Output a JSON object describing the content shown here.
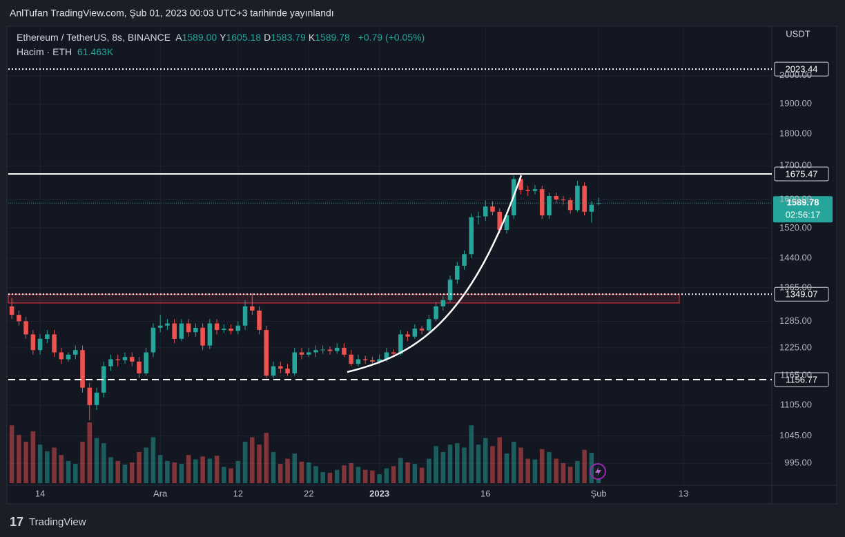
{
  "header": {
    "text": "AnlTufan TradingView.com, Şub 01, 2023 00:03 UTC+3 tarihinde yayınlandı"
  },
  "footer": {
    "brand": "TradingView"
  },
  "chart_data": {
    "type": "candlestick",
    "currency": "USDT",
    "legend": {
      "symbol": "Ethereum / TetherUS, 8s, BINANCE",
      "fields": [
        {
          "key": "A",
          "value": "1589.00"
        },
        {
          "key": "Y",
          "value": "1605.18"
        },
        {
          "key": "D",
          "value": "1583.79"
        },
        {
          "key": "K",
          "value": "1589.78"
        }
      ],
      "change": "+0.79 (+0.05%)",
      "volume_label": "Hacim · ETH",
      "volume_value": "61.463K"
    },
    "log_scale": true,
    "grid": true,
    "up_color": "#26a69a",
    "down_color": "#ef5350",
    "ylim": [
      960,
      2186
    ],
    "yticks": [
      {
        "value": 995,
        "label": "995.00"
      },
      {
        "value": 1045,
        "label": "1045.00"
      },
      {
        "value": 1105,
        "label": "1105.00"
      },
      {
        "value": 1165,
        "label": "1165.00"
      },
      {
        "value": 1225,
        "label": "1225.00"
      },
      {
        "value": 1285,
        "label": "1285.00"
      },
      {
        "value": 1365,
        "label": "1365.00"
      },
      {
        "value": 1440,
        "label": "1440.00"
      },
      {
        "value": 1520,
        "label": "1520.00"
      },
      {
        "value": 1600,
        "label": "1600.00"
      },
      {
        "value": 1700,
        "label": "1700.00"
      },
      {
        "value": 1800,
        "label": "1800.00"
      },
      {
        "value": 1900,
        "label": "1900.00"
      },
      {
        "value": 2000,
        "label": "2000.00"
      }
    ],
    "categories": [
      null,
      null,
      null,
      null,
      "14",
      null,
      null,
      null,
      null,
      null,
      null,
      null,
      null,
      null,
      null,
      null,
      null,
      null,
      null,
      null,
      null,
      "Ara",
      null,
      null,
      null,
      null,
      null,
      null,
      null,
      null,
      null,
      null,
      "12",
      null,
      null,
      null,
      null,
      null,
      null,
      null,
      null,
      null,
      "22",
      null,
      null,
      null,
      null,
      null,
      null,
      null,
      null,
      null,
      "2023",
      null,
      null,
      null,
      null,
      null,
      null,
      null,
      null,
      null,
      null,
      null,
      null,
      null,
      null,
      "16",
      null,
      null,
      null,
      null,
      null,
      null,
      null,
      null,
      null,
      null,
      null,
      null,
      null,
      null,
      null,
      "Şub",
      null,
      null,
      null,
      null,
      null,
      null,
      null,
      null,
      null,
      null,
      null,
      "13",
      null,
      null,
      null,
      null,
      null,
      null,
      null,
      null,
      null,
      null,
      null,
      null
    ],
    "open": [
      1320,
      1300,
      1285,
      1255,
      1220,
      1245,
      1255,
      1215,
      1200,
      1210,
      1220,
      1140,
      1105,
      1130,
      1185,
      1200,
      1198,
      1205,
      1195,
      1170,
      1215,
      1270,
      1275,
      1280,
      1245,
      1280,
      1260,
      1270,
      1230,
      1280,
      1265,
      1268,
      1263,
      1275,
      1320,
      1310,
      1265,
      1165,
      1185,
      1180,
      1170,
      1215,
      1210,
      1215,
      1220,
      1221,
      1218,
      1225,
      1210,
      1190,
      1200,
      1198,
      1195,
      1200,
      1215,
      1212,
      1255,
      1250,
      1268,
      1264,
      1290,
      1320,
      1335,
      1385,
      1420,
      1450,
      1550,
      1552,
      1580,
      1565,
      1515,
      1555,
      1660,
      1628,
      1625,
      1630,
      1555,
      1610,
      1600,
      1598,
      1570,
      1640,
      1565,
      1589.0,
      null,
      null,
      null,
      null,
      null,
      null,
      null,
      null,
      null,
      null,
      null,
      null,
      null,
      null,
      null,
      null,
      null,
      null,
      null,
      null,
      null,
      null,
      null,
      null
    ],
    "high": [
      1340,
      1310,
      1295,
      1265,
      1255,
      1265,
      1265,
      1225,
      1215,
      1230,
      1230,
      1150,
      1140,
      1195,
      1210,
      1210,
      1215,
      1215,
      1205,
      1225,
      1280,
      1300,
      1290,
      1290,
      1290,
      1290,
      1280,
      1280,
      1290,
      1290,
      1278,
      1278,
      1285,
      1335,
      1352,
      1320,
      1275,
      1195,
      1195,
      1190,
      1225,
      1225,
      1225,
      1230,
      1230,
      1228,
      1235,
      1235,
      1220,
      1210,
      1208,
      1205,
      1210,
      1225,
      1222,
      1265,
      1262,
      1278,
      1275,
      1300,
      1330,
      1345,
      1395,
      1430,
      1460,
      1560,
      1565,
      1598,
      1595,
      1575,
      1565,
      1670,
      1675.47,
      1640,
      1642,
      1640,
      1620,
      1620,
      1610,
      1605,
      1655,
      1650,
      1595,
      1605.18,
      null,
      null,
      null,
      null,
      null,
      null,
      null,
      null,
      null,
      null,
      null,
      null,
      null,
      null,
      null,
      null,
      null,
      null,
      null,
      null,
      null,
      null,
      null,
      null
    ],
    "low": [
      1290,
      1275,
      1245,
      1210,
      1210,
      1235,
      1205,
      1190,
      1195,
      1200,
      1130,
      1075,
      1095,
      1120,
      1175,
      1185,
      1190,
      1185,
      1160,
      1165,
      1205,
      1260,
      1265,
      1235,
      1240,
      1250,
      1250,
      1220,
      1222,
      1255,
      1258,
      1255,
      1255,
      1265,
      1300,
      1255,
      1160,
      1160,
      1170,
      1165,
      1165,
      1200,
      1205,
      1205,
      1212,
      1210,
      1212,
      1205,
      1185,
      1185,
      1190,
      1188,
      1190,
      1195,
      1205,
      1208,
      1240,
      1245,
      1255,
      1258,
      1285,
      1310,
      1330,
      1375,
      1410,
      1440,
      1530,
      1540,
      1555,
      1505,
      1505,
      1545,
      1615,
      1610,
      1615,
      1545,
      1545,
      1590,
      1585,
      1560,
      1565,
      1555,
      1535,
      1583.79,
      null,
      null,
      null,
      null,
      null,
      null,
      null,
      null,
      null,
      null,
      null,
      null,
      null,
      null,
      null,
      null,
      null,
      null,
      null,
      null,
      null,
      null,
      null,
      null
    ],
    "close": [
      1300,
      1285,
      1255,
      1220,
      1245,
      1255,
      1215,
      1200,
      1210,
      1220,
      1140,
      1105,
      1130,
      1185,
      1200,
      1198,
      1205,
      1195,
      1170,
      1215,
      1270,
      1275,
      1280,
      1245,
      1280,
      1260,
      1270,
      1230,
      1280,
      1265,
      1268,
      1263,
      1275,
      1320,
      1310,
      1265,
      1165,
      1185,
      1180,
      1170,
      1215,
      1210,
      1215,
      1220,
      1221,
      1218,
      1225,
      1210,
      1190,
      1200,
      1198,
      1195,
      1200,
      1215,
      1212,
      1255,
      1250,
      1268,
      1264,
      1290,
      1320,
      1335,
      1385,
      1420,
      1450,
      1550,
      1552,
      1580,
      1565,
      1515,
      1555,
      1660,
      1628,
      1625,
      1630,
      1555,
      1610,
      1600,
      1598,
      1570,
      1640,
      1565,
      1585,
      1589.78,
      null,
      null,
      null,
      null,
      null,
      null,
      null,
      null,
      null,
      null,
      null,
      null,
      null,
      null,
      null,
      null,
      null,
      null,
      null,
      null,
      null,
      null,
      null,
      null
    ],
    "volume": [
      780000,
      650000,
      560000,
      700000,
      520000,
      430000,
      480000,
      380000,
      300000,
      260000,
      560000,
      820000,
      610000,
      540000,
      350000,
      300000,
      250000,
      280000,
      420000,
      480000,
      620000,
      380000,
      300000,
      280000,
      260000,
      380000,
      320000,
      360000,
      330000,
      370000,
      220000,
      200000,
      300000,
      560000,
      620000,
      520000,
      680000,
      420000,
      260000,
      330000,
      400000,
      290000,
      280000,
      230000,
      150000,
      140000,
      180000,
      240000,
      270000,
      220000,
      180000,
      170000,
      120000,
      200000,
      230000,
      340000,
      280000,
      260000,
      210000,
      330000,
      500000,
      420000,
      520000,
      540000,
      480000,
      780000,
      520000,
      610000,
      500000,
      620000,
      400000,
      560000,
      480000,
      330000,
      320000,
      460000,
      420000,
      330000,
      270000,
      220000,
      300000,
      450000,
      410000,
      61463,
      null,
      null,
      null,
      null,
      null,
      null,
      null,
      null,
      null,
      null,
      null,
      null,
      null,
      null,
      null,
      null,
      null,
      null,
      null,
      null,
      null,
      null,
      null,
      null
    ],
    "price_lines": [
      {
        "value": 2023.44,
        "style": "dotted",
        "color": "#ffffff"
      },
      {
        "value": 1675.47,
        "style": "solid",
        "color": "#ffffff"
      },
      {
        "value": 1349.07,
        "style": "dotted",
        "color": "#ffffff"
      },
      {
        "value": 1156.77,
        "style": "dashed",
        "color": "#ffffff"
      }
    ],
    "zones": [
      {
        "low": 1328,
        "high": 1349.07,
        "color": "#f23645"
      }
    ],
    "last_price": {
      "value": 1589.78,
      "countdown": "02:56:17",
      "color": "#26a69a"
    }
  }
}
